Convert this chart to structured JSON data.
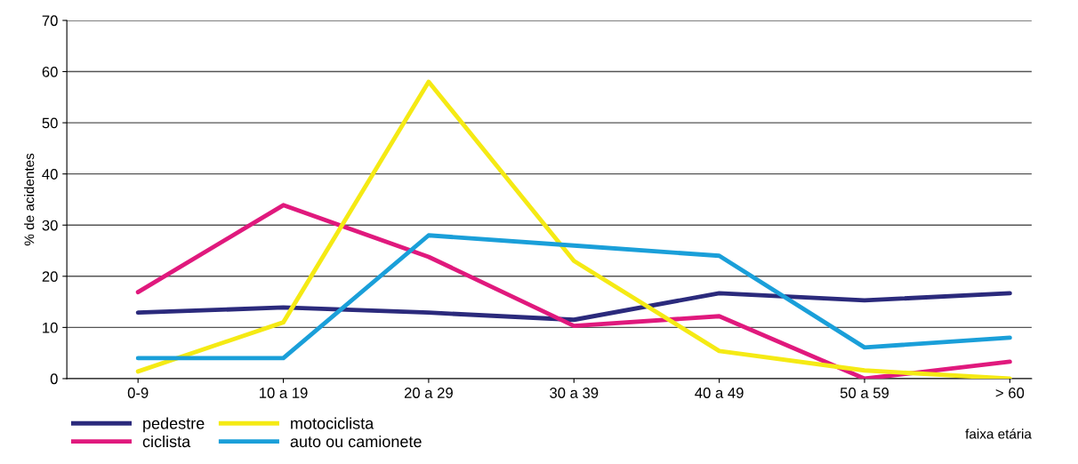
{
  "chart_data": {
    "type": "line",
    "ylabel": "% de acidentes",
    "xlabel": "faixa etária",
    "categories": [
      "0-9",
      "10 a 19",
      "20 a 29",
      "30 a 39",
      "40 a 49",
      "50 a 59",
      "> 60"
    ],
    "series": [
      {
        "name": "pedestre",
        "color": "#2b2a7c",
        "values": [
          12.9,
          13.9,
          12.9,
          11.5,
          16.7,
          15.3,
          16.7
        ]
      },
      {
        "name": "ciclista",
        "color": "#e0197d",
        "values": [
          16.9,
          33.9,
          23.8,
          10.3,
          12.2,
          0,
          3.3
        ]
      },
      {
        "name": "motociclista",
        "color": "#f5ea14",
        "values": [
          1.4,
          11,
          58,
          23,
          5.4,
          1.6,
          0
        ]
      },
      {
        "name": "auto ou camionete",
        "color": "#1a9fd9",
        "values": [
          4,
          4,
          28,
          26,
          24,
          6.1,
          8
        ]
      }
    ],
    "ylim": [
      0,
      70
    ],
    "yticks": [
      0,
      10,
      20,
      30,
      40,
      50,
      60,
      70
    ],
    "grid": "y",
    "legend": "bottom",
    "marker": "none",
    "line_style": "solid"
  }
}
